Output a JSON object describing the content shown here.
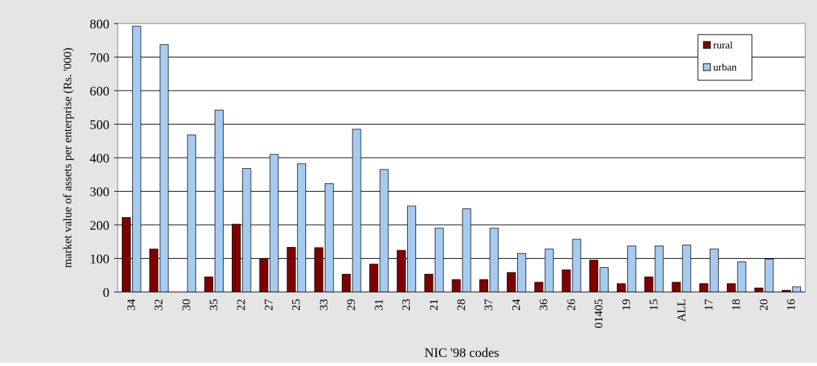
{
  "chart_data": {
    "type": "bar",
    "title": "",
    "xlabel": "NIC '98 codes",
    "ylabel": "market value of assets per enterprise (Rs. '000)",
    "ylim": [
      0,
      800
    ],
    "yticks": [
      0,
      100,
      200,
      300,
      400,
      500,
      600,
      700,
      800
    ],
    "grid": true,
    "legend_position": "top-right",
    "categories": [
      "34",
      "32",
      "30",
      "35",
      "22",
      "27",
      "25",
      "33",
      "29",
      "31",
      "23",
      "21",
      "28",
      "37",
      "24",
      "36",
      "26",
      "01405",
      "19",
      "15",
      "ALL",
      "17",
      "18",
      "20",
      "16"
    ],
    "series": [
      {
        "name": "rural",
        "color": "#7f0000",
        "values": [
          222,
          128,
          0,
          45,
          202,
          100,
          133,
          132,
          53,
          83,
          124,
          53,
          37,
          37,
          58,
          29,
          66,
          95,
          25,
          45,
          29,
          25,
          25,
          12,
          5
        ]
      },
      {
        "name": "urban",
        "color": "#a6caf0",
        "values": [
          792,
          737,
          468,
          542,
          368,
          410,
          382,
          323,
          485,
          365,
          256,
          190,
          248,
          190,
          115,
          128,
          157,
          73,
          137,
          137,
          140,
          128,
          90,
          98,
          15
        ]
      }
    ]
  }
}
